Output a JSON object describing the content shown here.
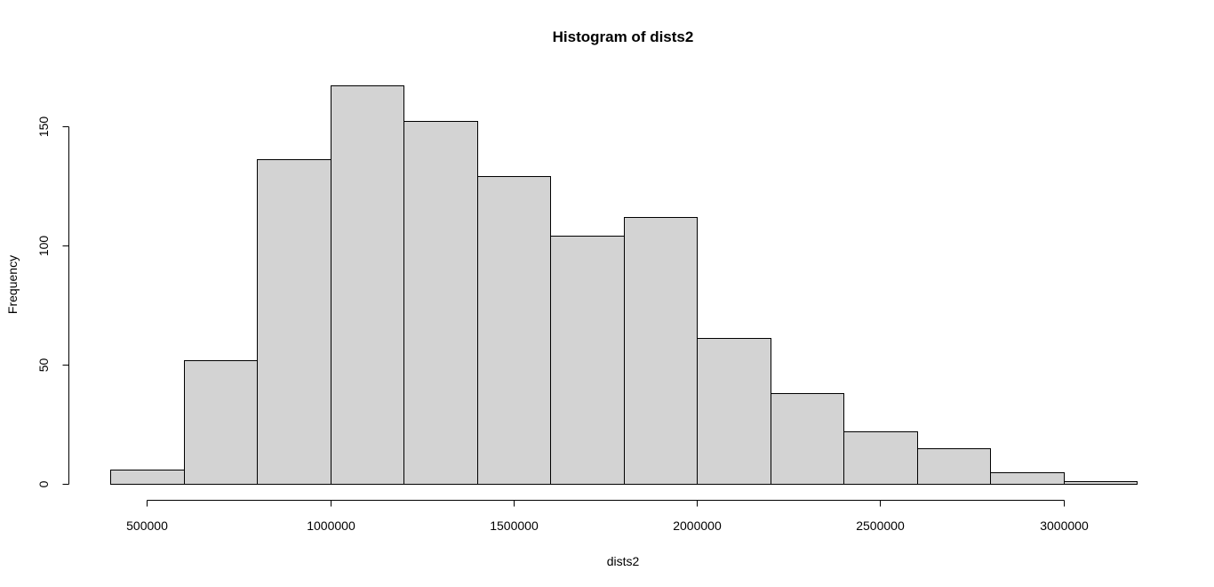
{
  "chart_data": {
    "type": "bar",
    "histogram": true,
    "title": "Histogram of dists2",
    "xlabel": "dists2",
    "ylabel": "Frequency",
    "bins": [
      {
        "start": 400000,
        "end": 600000,
        "count": 6
      },
      {
        "start": 600000,
        "end": 800000,
        "count": 52
      },
      {
        "start": 800000,
        "end": 1000000,
        "count": 136
      },
      {
        "start": 1000000,
        "end": 1200000,
        "count": 167
      },
      {
        "start": 1200000,
        "end": 1400000,
        "count": 152
      },
      {
        "start": 1400000,
        "end": 1600000,
        "count": 129
      },
      {
        "start": 1600000,
        "end": 1800000,
        "count": 104
      },
      {
        "start": 1800000,
        "end": 2000000,
        "count": 112
      },
      {
        "start": 2000000,
        "end": 2200000,
        "count": 61
      },
      {
        "start": 2200000,
        "end": 2400000,
        "count": 38
      },
      {
        "start": 2400000,
        "end": 2600000,
        "count": 22
      },
      {
        "start": 2600000,
        "end": 2800000,
        "count": 15
      },
      {
        "start": 2800000,
        "end": 3000000,
        "count": 5
      },
      {
        "start": 3000000,
        "end": 3200000,
        "count": 1
      }
    ],
    "xlim": [
      400000,
      3200000
    ],
    "ylim": [
      0,
      167
    ],
    "x_ticks": [
      500000,
      1000000,
      1500000,
      2000000,
      2500000,
      3000000
    ],
    "x_tick_labels": [
      "500000",
      "1000000",
      "1500000",
      "2000000",
      "2500000",
      "3000000"
    ],
    "y_ticks": [
      0,
      50,
      100,
      150
    ],
    "y_tick_labels": [
      "0",
      "50",
      "100",
      "150"
    ],
    "bar_fill": "#d3d3d3",
    "bar_stroke": "#000000",
    "grid": false,
    "legend": "none"
  }
}
